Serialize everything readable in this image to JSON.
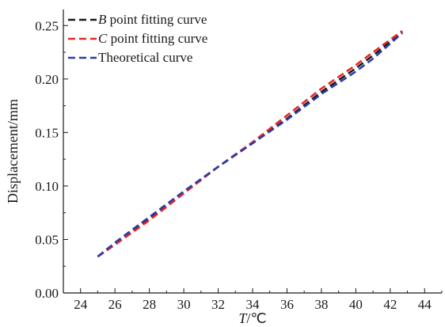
{
  "chart_data": {
    "type": "line",
    "xlabel_var": "T",
    "xlabel_unit": "/℃",
    "ylabel": "Displacement/mm",
    "xlim": [
      23,
      45
    ],
    "ylim": [
      0,
      0.265
    ],
    "xticks": [
      24,
      26,
      28,
      30,
      32,
      34,
      36,
      38,
      40,
      42,
      44
    ],
    "yticks": [
      "0.00",
      "0.05",
      "0.10",
      "0.15",
      "0.20",
      "0.25"
    ],
    "ytick_values": [
      0,
      0.05,
      0.1,
      0.15,
      0.2,
      0.25
    ],
    "grid": false,
    "legend_position": "top-left",
    "series": [
      {
        "legend_var": "B",
        "legend_text": " point fitting curve",
        "color": "#1a1a1a",
        "dash": "dashed",
        "x": [
          25.0,
          26.0,
          28.0,
          30.0,
          32.0,
          34.0,
          36.0,
          38.0,
          40.0,
          41.0,
          42.7
        ],
        "y": [
          0.034,
          0.046,
          0.07,
          0.094,
          0.118,
          0.14,
          0.163,
          0.188,
          0.21,
          0.222,
          0.244
        ]
      },
      {
        "legend_var": "C",
        "legend_text": " point fitting curve",
        "color": "#e8262a",
        "dash": "dashed",
        "x": [
          25.0,
          26.0,
          28.0,
          30.0,
          32.0,
          34.0,
          36.0,
          38.0,
          40.0,
          41.0,
          42.7
        ],
        "y": [
          0.034,
          0.045,
          0.068,
          0.093,
          0.118,
          0.141,
          0.166,
          0.191,
          0.213,
          0.225,
          0.245
        ]
      },
      {
        "legend_var": "",
        "legend_text": "Theoretical curve",
        "color": "#2b3da8",
        "dash": "dashed",
        "x": [
          25.0,
          26.0,
          28.0,
          30.0,
          32.0,
          34.0,
          36.0,
          38.0,
          40.0,
          41.0,
          42.7
        ],
        "y": [
          0.034,
          0.047,
          0.071,
          0.095,
          0.118,
          0.14,
          0.162,
          0.186,
          0.207,
          0.219,
          0.243
        ]
      }
    ]
  }
}
